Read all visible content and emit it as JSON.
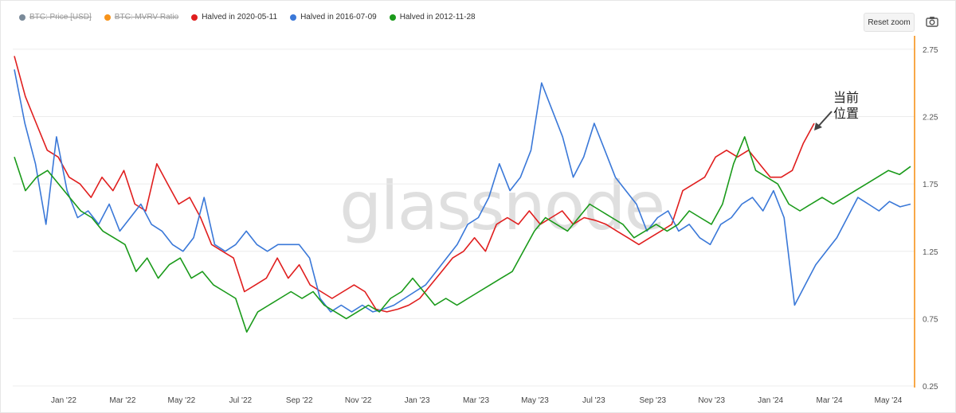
{
  "legend": [
    {
      "label": "BTC: Price [USD]",
      "color": "#7a8a99",
      "hidden": true
    },
    {
      "label": "BTC: MVRV Ratio",
      "color": "#f7931a",
      "hidden": true
    },
    {
      "label": "Halved in 2020-05-11",
      "color": "#e01e1e",
      "hidden": false
    },
    {
      "label": "Halved in 2016-07-09",
      "color": "#3a78d8",
      "hidden": false
    },
    {
      "label": "Halved in 2012-11-28",
      "color": "#1a9a1a",
      "hidden": false
    }
  ],
  "controls": {
    "reset_zoom": "Reset zoom",
    "camera_icon": "camera-icon"
  },
  "watermark": "glassnode",
  "annotation": {
    "line1": "当前",
    "line2": "位置"
  },
  "colors": {
    "axis_line": "#f7931a",
    "grid": "#ececec"
  },
  "chart_data": {
    "type": "line",
    "x_ticks": [
      "Jan '22",
      "Mar '22",
      "May '22",
      "Jul '22",
      "Sep '22",
      "Nov '22",
      "Jan '23",
      "Mar '23",
      "May '23",
      "Jul '23",
      "Sep '23",
      "Nov '23",
      "Jan '24",
      "Mar '24",
      "May '24"
    ],
    "y_ticks": [
      "2.75",
      "2.25",
      "1.75",
      "1.25",
      "0.75",
      "0.25"
    ],
    "ylim": [
      0.25,
      2.85
    ],
    "y_axis_side": "right",
    "grid": true,
    "series": [
      {
        "name": "Halved in 2020-05-11",
        "color": "#e01e1e",
        "values": [
          2.7,
          2.4,
          2.2,
          2.0,
          1.95,
          1.8,
          1.75,
          1.65,
          1.8,
          1.7,
          1.85,
          1.6,
          1.55,
          1.9,
          1.75,
          1.6,
          1.65,
          1.5,
          1.3,
          1.25,
          1.2,
          0.95,
          1.0,
          1.05,
          1.2,
          1.05,
          1.15,
          1.0,
          0.95,
          0.9,
          0.95,
          1.0,
          0.95,
          0.82,
          0.8,
          0.82,
          0.85,
          0.9,
          1.0,
          1.1,
          1.2,
          1.25,
          1.35,
          1.25,
          1.45,
          1.5,
          1.45,
          1.55,
          1.45,
          1.5,
          1.55,
          1.45,
          1.5,
          1.48,
          1.45,
          1.4,
          1.35,
          1.3,
          1.35,
          1.4,
          1.45,
          1.7,
          1.75,
          1.8,
          1.95,
          2.0,
          1.95,
          2.0,
          1.9,
          1.8,
          1.8,
          1.85,
          2.05,
          2.2
        ]
      },
      {
        "name": "Halved in 2016-07-09",
        "color": "#3a78d8",
        "values": [
          2.6,
          2.2,
          1.9,
          1.45,
          2.1,
          1.7,
          1.5,
          1.55,
          1.45,
          1.6,
          1.4,
          1.5,
          1.6,
          1.45,
          1.4,
          1.3,
          1.25,
          1.35,
          1.65,
          1.3,
          1.25,
          1.3,
          1.4,
          1.3,
          1.25,
          1.3,
          1.3,
          1.3,
          1.2,
          0.9,
          0.8,
          0.85,
          0.8,
          0.85,
          0.8,
          0.82,
          0.85,
          0.9,
          0.95,
          1.0,
          1.1,
          1.2,
          1.3,
          1.45,
          1.5,
          1.65,
          1.9,
          1.7,
          1.8,
          2.0,
          2.5,
          2.3,
          2.1,
          1.8,
          1.95,
          2.2,
          2.0,
          1.8,
          1.7,
          1.6,
          1.4,
          1.5,
          1.55,
          1.4,
          1.45,
          1.35,
          1.3,
          1.45,
          1.5,
          1.6,
          1.65,
          1.55,
          1.7,
          1.5,
          0.85,
          1.0,
          1.15,
          1.25,
          1.35,
          1.5,
          1.65,
          1.6,
          1.55,
          1.62,
          1.58,
          1.6
        ]
      },
      {
        "name": "Halved in 2012-11-28",
        "color": "#1a9a1a",
        "values": [
          1.95,
          1.7,
          1.8,
          1.85,
          1.75,
          1.65,
          1.55,
          1.5,
          1.4,
          1.35,
          1.3,
          1.1,
          1.2,
          1.05,
          1.15,
          1.2,
          1.05,
          1.1,
          1.0,
          0.95,
          0.9,
          0.65,
          0.8,
          0.85,
          0.9,
          0.95,
          0.9,
          0.95,
          0.85,
          0.8,
          0.75,
          0.8,
          0.85,
          0.8,
          0.9,
          0.95,
          1.05,
          0.95,
          0.85,
          0.9,
          0.85,
          0.9,
          0.95,
          1.0,
          1.05,
          1.1,
          1.25,
          1.4,
          1.5,
          1.45,
          1.4,
          1.5,
          1.6,
          1.55,
          1.5,
          1.45,
          1.35,
          1.4,
          1.45,
          1.4,
          1.45,
          1.55,
          1.5,
          1.45,
          1.6,
          1.9,
          2.1,
          1.85,
          1.8,
          1.75,
          1.6,
          1.55,
          1.6,
          1.65,
          1.6,
          1.65,
          1.7,
          1.75,
          1.8,
          1.85,
          1.82,
          1.88
        ]
      }
    ]
  }
}
